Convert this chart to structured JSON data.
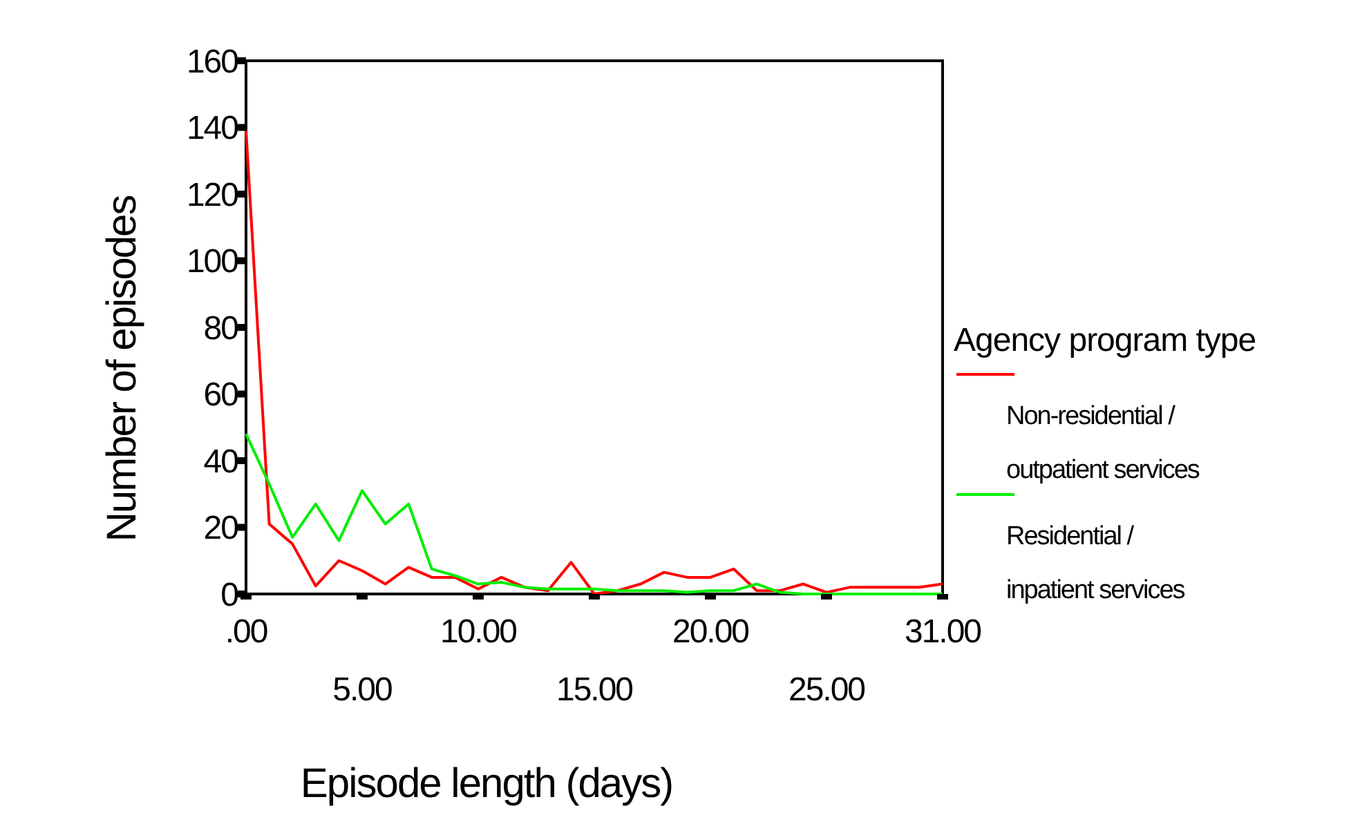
{
  "chart_data": {
    "type": "line",
    "xlabel": "Episode length (days)",
    "ylabel": "Number of episodes",
    "legend_title": "Agency program type",
    "legend": "right",
    "grid": false,
    "categories": [
      ".00",
      null,
      null,
      null,
      null,
      "5.00",
      null,
      null,
      null,
      null,
      "10.00",
      null,
      null,
      null,
      null,
      "15.00",
      null,
      null,
      null,
      null,
      "20.00",
      null,
      null,
      null,
      null,
      "25.00",
      null,
      null,
      null,
      null,
      "31.00"
    ],
    "ylim": [
      0,
      160
    ],
    "yticks": [
      0,
      20,
      40,
      60,
      80,
      100,
      120,
      140,
      160
    ],
    "series": [
      {
        "name": "Non-residential / outpatient services",
        "color": "#ff0000",
        "values": [
          139,
          21,
          15,
          2.4,
          10,
          7,
          3,
          8,
          5,
          5,
          1.5,
          5,
          2,
          1,
          9.5,
          0,
          1,
          3,
          6.5,
          5,
          5,
          7.5,
          1,
          1,
          3,
          0.5,
          2,
          2,
          2,
          2,
          3
        ]
      },
      {
        "name": "Residential / inpatient services",
        "color": "#00ee00",
        "values": [
          48,
          33,
          17,
          27,
          16,
          31,
          21,
          27,
          7.5,
          5.5,
          3,
          3.5,
          2,
          1.5,
          1.5,
          1.5,
          1,
          1,
          1,
          0.5,
          1,
          1,
          3,
          0.5,
          0,
          0,
          0,
          0,
          0,
          0,
          0
        ]
      }
    ]
  }
}
